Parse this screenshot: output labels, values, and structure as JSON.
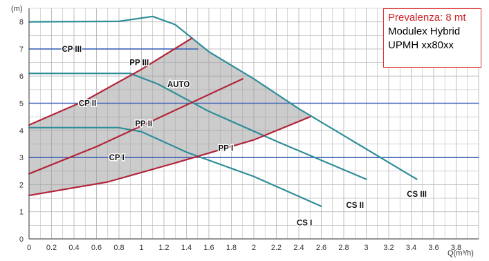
{
  "chart_data": {
    "type": "line",
    "title": "",
    "xlabel": "Q(m³/h)",
    "ylabel": "(m)",
    "xlim": [
      0,
      4.0
    ],
    "ylim": [
      0,
      8.5
    ],
    "x_ticks": [
      "0",
      "0.2",
      "0.4",
      "0.6",
      "0.8",
      "1",
      "1.2",
      "1.4",
      "1.6",
      "1.8",
      "2",
      "2.2",
      "2.4",
      "2.6",
      "2.8",
      "3",
      "3.2",
      "3.4",
      "3.6",
      "3.8"
    ],
    "y_ticks": [
      "0",
      "1",
      "2",
      "3",
      "4",
      "5",
      "6",
      "7",
      "8"
    ],
    "grid": true,
    "info_box": {
      "line1": "Prevalenza: 8 mt",
      "line2": "Modulex Hybrid",
      "line3": "UPMH xx80xx"
    },
    "auto_region_label": "AUTO",
    "series": [
      {
        "name": "CP I",
        "kind": "blue",
        "points": [
          [
            0,
            3
          ],
          [
            4.0,
            3
          ]
        ]
      },
      {
        "name": "CP II",
        "kind": "blue",
        "points": [
          [
            0,
            5
          ],
          [
            4.0,
            5
          ]
        ]
      },
      {
        "name": "CP III",
        "kind": "blue",
        "points": [
          [
            0,
            7
          ],
          [
            1.5,
            7
          ]
        ]
      },
      {
        "name": "CS I",
        "kind": "teal",
        "points": [
          [
            0,
            4.1
          ],
          [
            0.8,
            4.1
          ],
          [
            1.0,
            3.95
          ],
          [
            1.4,
            3.2
          ],
          [
            2.0,
            2.3
          ],
          [
            2.6,
            1.2
          ]
        ]
      },
      {
        "name": "CS II",
        "kind": "teal",
        "points": [
          [
            0,
            6.1
          ],
          [
            0.9,
            6.1
          ],
          [
            1.15,
            5.7
          ],
          [
            1.6,
            4.7
          ],
          [
            2.2,
            3.6
          ],
          [
            3.0,
            2.2
          ]
        ]
      },
      {
        "name": "CS III",
        "kind": "teal",
        "points": [
          [
            0,
            8.0
          ],
          [
            0.8,
            8.02
          ],
          [
            1.1,
            8.2
          ],
          [
            1.3,
            7.9
          ],
          [
            1.6,
            6.9
          ],
          [
            2.0,
            5.9
          ],
          [
            2.4,
            4.8
          ],
          [
            3.45,
            2.2
          ]
        ]
      },
      {
        "name": "PP I",
        "kind": "red",
        "points": [
          [
            0,
            1.6
          ],
          [
            0.7,
            2.1
          ],
          [
            1.3,
            2.8
          ],
          [
            2.0,
            3.65
          ],
          [
            2.5,
            4.5
          ]
        ]
      },
      {
        "name": "PP II",
        "kind": "red",
        "points": [
          [
            0,
            2.4
          ],
          [
            0.6,
            3.4
          ],
          [
            1.2,
            4.55
          ],
          [
            1.9,
            5.9
          ]
        ]
      },
      {
        "name": "PP III",
        "kind": "red",
        "points": [
          [
            0,
            4.2
          ],
          [
            0.5,
            5.1
          ],
          [
            1.0,
            6.25
          ],
          [
            1.45,
            7.4
          ]
        ]
      }
    ],
    "curve_labels": [
      {
        "text": "CP III",
        "x": 0.38,
        "y": 7.0
      },
      {
        "text": "PP III",
        "x": 0.98,
        "y": 6.5
      },
      {
        "text": "AUTO",
        "x": 1.33,
        "y": 5.7
      },
      {
        "text": "CP II",
        "x": 0.52,
        "y": 5.0
      },
      {
        "text": "PP II",
        "x": 1.02,
        "y": 4.25
      },
      {
        "text": "PP I",
        "x": 1.75,
        "y": 3.35
      },
      {
        "text": "CP I",
        "x": 0.78,
        "y": 3.0
      },
      {
        "text": "CS III",
        "x": 3.45,
        "y": 1.65
      },
      {
        "text": "CS II",
        "x": 2.9,
        "y": 1.25
      },
      {
        "text": "CS I",
        "x": 2.45,
        "y": 0.6
      }
    ]
  }
}
